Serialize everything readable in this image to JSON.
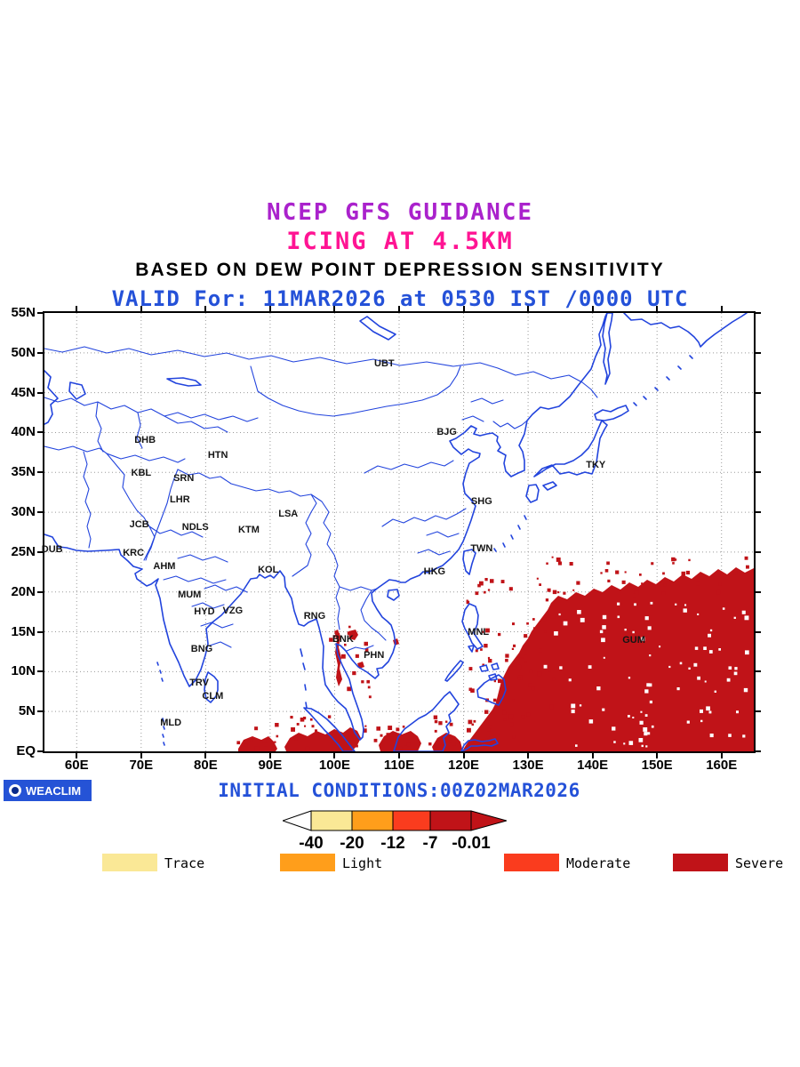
{
  "header": {
    "line1": "NCEP GFS GUIDANCE",
    "line2": "ICING AT 4.5KM",
    "line3": "BASED ON DEW POINT DEPRESSION SENSITIVITY",
    "valid_line": "VALID For: 11MAR2026 at 0530 IST /0000 UTC"
  },
  "map": {
    "extent": {
      "lon_min": 55,
      "lon_max": 165,
      "lat_min": 0,
      "lat_max": 55
    },
    "lat_ticks": [
      {
        "label": "55N",
        "deg": 55
      },
      {
        "label": "50N",
        "deg": 50
      },
      {
        "label": "45N",
        "deg": 45
      },
      {
        "label": "40N",
        "deg": 40
      },
      {
        "label": "35N",
        "deg": 35
      },
      {
        "label": "30N",
        "deg": 30
      },
      {
        "label": "25N",
        "deg": 25
      },
      {
        "label": "20N",
        "deg": 20
      },
      {
        "label": "15N",
        "deg": 15
      },
      {
        "label": "10N",
        "deg": 10
      },
      {
        "label": "5N",
        "deg": 5
      },
      {
        "label": "EQ",
        "deg": 0
      }
    ],
    "lon_ticks": [
      {
        "label": "60E",
        "deg": 60
      },
      {
        "label": "70E",
        "deg": 70
      },
      {
        "label": "80E",
        "deg": 80
      },
      {
        "label": "90E",
        "deg": 90
      },
      {
        "label": "100E",
        "deg": 100
      },
      {
        "label": "110E",
        "deg": 110
      },
      {
        "label": "120E",
        "deg": 120
      },
      {
        "label": "130E",
        "deg": 130
      },
      {
        "label": "140E",
        "deg": 140
      },
      {
        "label": "150E",
        "deg": 150
      },
      {
        "label": "160E",
        "deg": 160
      }
    ],
    "stations": [
      {
        "name": "UBT",
        "lon": 107.7,
        "lat": 48.6
      },
      {
        "name": "DHB",
        "lon": 70.6,
        "lat": 39.0
      },
      {
        "name": "HTN",
        "lon": 81.9,
        "lat": 37.2
      },
      {
        "name": "KBL",
        "lon": 70.0,
        "lat": 34.9
      },
      {
        "name": "SRN",
        "lon": 76.6,
        "lat": 34.2
      },
      {
        "name": "LHR",
        "lon": 76.0,
        "lat": 31.6
      },
      {
        "name": "BJG",
        "lon": 117.4,
        "lat": 40.1
      },
      {
        "name": "TKY",
        "lon": 140.5,
        "lat": 35.9
      },
      {
        "name": "SHG",
        "lon": 122.8,
        "lat": 31.4
      },
      {
        "name": "JCB",
        "lon": 69.7,
        "lat": 28.4
      },
      {
        "name": "NDLS",
        "lon": 78.4,
        "lat": 28.1
      },
      {
        "name": "KTM",
        "lon": 86.7,
        "lat": 27.8
      },
      {
        "name": "LSA",
        "lon": 92.8,
        "lat": 29.8
      },
      {
        "name": "DUB",
        "lon": 56.2,
        "lat": 25.3
      },
      {
        "name": "KRC",
        "lon": 68.8,
        "lat": 24.9
      },
      {
        "name": "TWN",
        "lon": 122.8,
        "lat": 25.4
      },
      {
        "name": "AHM",
        "lon": 73.6,
        "lat": 23.2
      },
      {
        "name": "KOL",
        "lon": 89.7,
        "lat": 22.8
      },
      {
        "name": "HKG",
        "lon": 115.5,
        "lat": 22.5
      },
      {
        "name": "MUM",
        "lon": 77.5,
        "lat": 19.6
      },
      {
        "name": "HYD",
        "lon": 79.8,
        "lat": 17.5
      },
      {
        "name": "VZG",
        "lon": 84.2,
        "lat": 17.6
      },
      {
        "name": "RNG",
        "lon": 96.9,
        "lat": 17.0
      },
      {
        "name": "BNG",
        "lon": 79.4,
        "lat": 12.8
      },
      {
        "name": "BNK",
        "lon": 101.3,
        "lat": 14.1
      },
      {
        "name": "PHN",
        "lon": 106.1,
        "lat": 12.1
      },
      {
        "name": "MNL",
        "lon": 122.3,
        "lat": 14.9
      },
      {
        "name": "GUM",
        "lon": 146.4,
        "lat": 14.0
      },
      {
        "name": "TRV",
        "lon": 79.0,
        "lat": 8.6
      },
      {
        "name": "CLM",
        "lon": 81.1,
        "lat": 6.9
      },
      {
        "name": "MLD",
        "lon": 74.6,
        "lat": 3.6
      }
    ]
  },
  "colorbar": {
    "tick_labels": [
      "-40",
      "-20",
      "-12",
      "-7",
      "-0.01"
    ],
    "segment_colors": [
      "#FAE896",
      "#FF9E1B",
      "#FA3C1E",
      "#C01318"
    ],
    "left_arrow_color": "#FFFFFF",
    "right_arrow_color": "#C01318"
  },
  "legend": {
    "items": [
      {
        "label": "Trace",
        "color": "#FAE896"
      },
      {
        "label": "Light",
        "color": "#FF9E1B"
      },
      {
        "label": "Moderate",
        "color": "#FA3C1E"
      },
      {
        "label": "Severe",
        "color": "#C01318"
      }
    ]
  },
  "footer": {
    "initial_conditions": "INITIAL CONDITIONS:00Z02MAR2026",
    "logo_text": "WEACLIM"
  },
  "colors": {
    "title1": "#AA22CC",
    "title2": "#FF1493",
    "title3": "#000000",
    "blue_text": "#2451D8",
    "coastline": "#2244DD",
    "severe_fill": "#C01318",
    "logo_bg": "#2553D6",
    "grid": "#9a9a9a"
  },
  "chart_data": {
    "type": "heatmap",
    "title": "ICING AT 4.5KM",
    "subtitle": "BASED ON DEW POINT DEPRESSION SENSITIVITY",
    "thresholds": [
      -40,
      -20,
      -12,
      -7,
      -0.01
    ],
    "categories": [
      "Trace",
      "Light",
      "Moderate",
      "Severe"
    ],
    "severe_regions_visible": [
      "Western Pacific approx 125E-165E, EQ-23N (large speckled mass)",
      "Equatorial band approx 85E-120E near EQ",
      "Gulf of Thailand / Indochina approx 99E-110E, 7N-16N (small patches)"
    ]
  }
}
